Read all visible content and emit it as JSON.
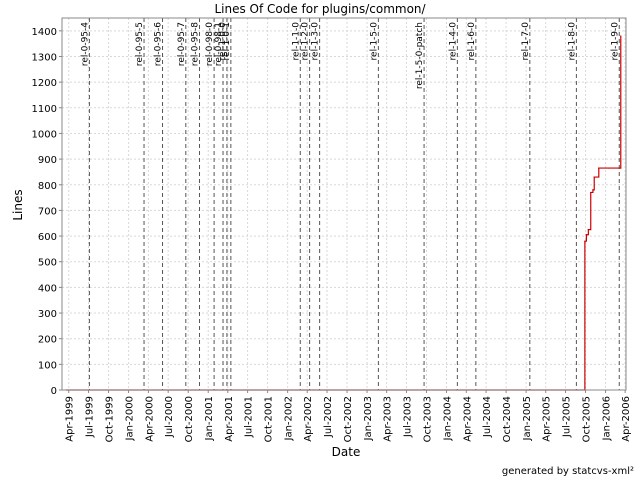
{
  "chart_data": {
    "type": "line",
    "title": "Lines Of Code for plugins/common/",
    "xlabel": "Date",
    "ylabel": "Lines",
    "footer": "generated by statcvs-xml²",
    "x_range": [
      "1999-03-01",
      "2006-04-05"
    ],
    "ylim": [
      0,
      1450
    ],
    "y_ticks": [
      0,
      100,
      200,
      300,
      400,
      500,
      600,
      700,
      800,
      900,
      1000,
      1100,
      1200,
      1300,
      1400
    ],
    "x_ticks": [
      {
        "date": "1999-04-01",
        "label": "Apr-1999"
      },
      {
        "date": "1999-07-01",
        "label": "Jul-1999"
      },
      {
        "date": "1999-10-01",
        "label": "Oct-1999"
      },
      {
        "date": "2000-01-01",
        "label": "Jan-2000"
      },
      {
        "date": "2000-04-01",
        "label": "Apr-2000"
      },
      {
        "date": "2000-07-01",
        "label": "Jul-2000"
      },
      {
        "date": "2000-10-01",
        "label": "Oct-2000"
      },
      {
        "date": "2001-01-01",
        "label": "Jan-2001"
      },
      {
        "date": "2001-04-01",
        "label": "Apr-2001"
      },
      {
        "date": "2001-07-01",
        "label": "Jul-2001"
      },
      {
        "date": "2001-10-01",
        "label": "Oct-2001"
      },
      {
        "date": "2002-01-01",
        "label": "Jan-2002"
      },
      {
        "date": "2002-04-01",
        "label": "Apr-2002"
      },
      {
        "date": "2002-07-01",
        "label": "Jul-2002"
      },
      {
        "date": "2002-10-01",
        "label": "Oct-2002"
      },
      {
        "date": "2003-01-01",
        "label": "Jan-2003"
      },
      {
        "date": "2003-04-01",
        "label": "Apr-2003"
      },
      {
        "date": "2003-07-01",
        "label": "Jul-2003"
      },
      {
        "date": "2003-10-01",
        "label": "Oct-2003"
      },
      {
        "date": "2004-01-01",
        "label": "Jan-2004"
      },
      {
        "date": "2004-04-01",
        "label": "Apr-2004"
      },
      {
        "date": "2004-07-01",
        "label": "Jul-2004"
      },
      {
        "date": "2004-10-01",
        "label": "Oct-2004"
      },
      {
        "date": "2005-01-01",
        "label": "Jan-2005"
      },
      {
        "date": "2005-04-01",
        "label": "Apr-2005"
      },
      {
        "date": "2005-07-01",
        "label": "Jul-2005"
      },
      {
        "date": "2005-10-01",
        "label": "Oct-2005"
      },
      {
        "date": "2006-01-01",
        "label": "Jan-2006"
      },
      {
        "date": "2006-04-01",
        "label": "Apr-2006"
      }
    ],
    "grid": true,
    "series": [
      {
        "color": "#cc0000",
        "step": true,
        "points": [
          {
            "x": "1999-03-20",
            "y": 0
          },
          {
            "x": "2005-09-28",
            "y": 0
          },
          {
            "x": "2005-09-28",
            "y": 580
          },
          {
            "x": "2005-10-05",
            "y": 605
          },
          {
            "x": "2005-10-14",
            "y": 625
          },
          {
            "x": "2005-10-25",
            "y": 770
          },
          {
            "x": "2005-11-04",
            "y": 780
          },
          {
            "x": "2005-11-10",
            "y": 830
          },
          {
            "x": "2005-12-01",
            "y": 865
          },
          {
            "x": "2006-01-15",
            "y": 865
          },
          {
            "x": "2006-03-12",
            "y": 865
          },
          {
            "x": "2006-03-12",
            "y": 1380
          }
        ]
      }
    ],
    "markers": [
      {
        "date": "1999-07-05",
        "label": "rel-0-95-4"
      },
      {
        "date": "2000-03-12",
        "label": "rel-0-95-5"
      },
      {
        "date": "2000-06-05",
        "label": "rel-0-95-6"
      },
      {
        "date": "2000-09-20",
        "label": "rel-0-95-7"
      },
      {
        "date": "2000-11-22",
        "label": "rel-0-95-8"
      },
      {
        "date": "2001-01-28",
        "label": "rel-0-98-0"
      },
      {
        "date": "2001-03-10",
        "label": "rel-0-98-1"
      },
      {
        "date": "2001-03-28",
        "label": "rel-1-0-0"
      },
      {
        "date": "2001-04-15",
        "label": "rel-1-0-1"
      },
      {
        "date": "2002-02-28",
        "label": "rel-1-1-0"
      },
      {
        "date": "2002-04-12",
        "label": "rel-1-2-0"
      },
      {
        "date": "2002-05-28",
        "label": "rel-1-3-0"
      },
      {
        "date": "2003-02-22",
        "label": "rel-1-5-0"
      },
      {
        "date": "2003-09-20",
        "label": "rel-1-5-0-patch"
      },
      {
        "date": "2004-02-20",
        "label": "rel-1-4-0"
      },
      {
        "date": "2004-05-15",
        "label": "rel-1-6-0"
      },
      {
        "date": "2005-01-18",
        "label": "rel-1-7-0"
      },
      {
        "date": "2005-08-20",
        "label": "rel-1-8-0"
      },
      {
        "date": "2006-03-05",
        "label": "rel-1-9-0"
      }
    ]
  }
}
